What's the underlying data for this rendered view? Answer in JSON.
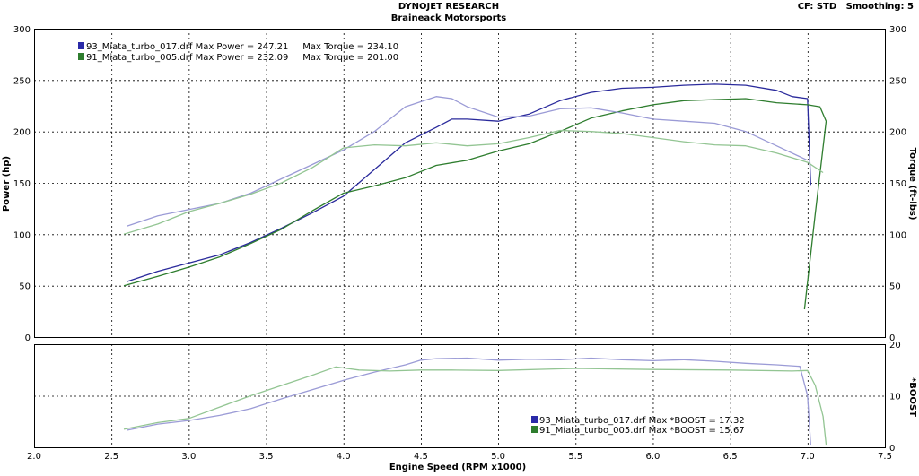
{
  "header": {
    "title": "DYNOJET RESEARCH",
    "subtitle": "Braineack Motorsports",
    "settings": "CF: STD   Smoothing: 5"
  },
  "chart_data": [
    {
      "type": "line",
      "panel": "power-torque",
      "xlabel": "Engine Speed (RPM x1000)",
      "ylabel_left": "Power (hp)",
      "ylabel_right": "Torque (ft-lbs)",
      "xlim": [
        2.0,
        7.5
      ],
      "ylim": [
        0,
        300
      ],
      "x_ticks": [
        "2.0",
        "2.5",
        "3.0",
        "3.5",
        "4.0",
        "4.5",
        "5.0",
        "5.5",
        "6.0",
        "6.5",
        "7.0",
        "7.5"
      ],
      "y_ticks": [
        "0",
        "50",
        "100",
        "150",
        "200",
        "250",
        "300"
      ],
      "grid": true,
      "legend": [
        {
          "file": "93_Miata_turbo_017.drf",
          "text": "93_Miata_turbo_017.drf Max Power = 247.21     Max Torque = 234.10",
          "color": "#2a2aa8"
        },
        {
          "file": "91_Miata_turbo_005.drf",
          "text": "91_Miata_turbo_005.drf Max Power = 232.09     Max Torque = 201.00",
          "color": "#2e7d2e"
        }
      ],
      "series": [
        {
          "name": "93_Miata_turbo_017.drf",
          "measure": "power",
          "color": "#2a2a9c",
          "x": [
            2.6,
            2.8,
            3.0,
            3.2,
            3.4,
            3.6,
            3.8,
            4.0,
            4.2,
            4.4,
            4.6,
            4.7,
            4.8,
            5.0,
            5.2,
            5.4,
            5.6,
            5.8,
            6.0,
            6.2,
            6.4,
            6.6,
            6.8,
            6.9,
            7.0,
            7.02
          ],
          "y": [
            54,
            64,
            72,
            80,
            92,
            106,
            121,
            137,
            163,
            189,
            204,
            212,
            212,
            210,
            217,
            230,
            238,
            242,
            243,
            245,
            246,
            245,
            240,
            234,
            232,
            148
          ]
        },
        {
          "name": "91_Miata_turbo_005.drf",
          "measure": "power",
          "color": "#2e7d2e",
          "x": [
            2.58,
            2.8,
            3.0,
            3.2,
            3.4,
            3.6,
            3.8,
            4.0,
            4.2,
            4.4,
            4.6,
            4.8,
            5.0,
            5.2,
            5.4,
            5.6,
            5.8,
            6.0,
            6.2,
            6.4,
            6.6,
            6.8,
            7.0,
            7.08,
            7.12,
            7.05,
            6.98
          ],
          "y": [
            50,
            59,
            68,
            78,
            91,
            105,
            123,
            140,
            147,
            155,
            167,
            172,
            181,
            188,
            200,
            213,
            220,
            226,
            230,
            231,
            232,
            228,
            226,
            224,
            210,
            120,
            27
          ]
        },
        {
          "name": "93_Miata_turbo_017.drf",
          "measure": "torque",
          "color": "#9b9bd6",
          "x": [
            2.6,
            2.8,
            3.0,
            3.2,
            3.4,
            3.6,
            3.8,
            4.0,
            4.2,
            4.4,
            4.6,
            4.7,
            4.8,
            5.0,
            5.2,
            5.4,
            5.6,
            5.8,
            6.0,
            6.2,
            6.4,
            6.6,
            6.8,
            7.0
          ],
          "y": [
            108,
            118,
            124,
            130,
            140,
            154,
            168,
            182,
            200,
            224,
            234,
            232,
            224,
            214,
            215,
            222,
            223,
            218,
            212,
            210,
            208,
            200,
            186,
            172
          ]
        },
        {
          "name": "91_Miata_turbo_005.drf",
          "measure": "torque",
          "color": "#93c593",
          "x": [
            2.58,
            2.8,
            3.0,
            3.2,
            3.4,
            3.6,
            3.8,
            4.0,
            4.2,
            4.4,
            4.6,
            4.8,
            5.0,
            5.2,
            5.4,
            5.6,
            5.8,
            6.0,
            6.2,
            6.4,
            6.6,
            6.8,
            7.0,
            7.1
          ],
          "y": [
            100,
            110,
            122,
            130,
            139,
            150,
            165,
            184,
            187,
            186,
            189,
            186,
            188,
            194,
            201,
            200,
            198,
            194,
            190,
            187,
            186,
            179,
            170,
            160
          ]
        }
      ]
    },
    {
      "type": "line",
      "panel": "boost",
      "ylabel_right": "*BOOST",
      "xlim": [
        2.0,
        7.5
      ],
      "ylim": [
        0,
        20
      ],
      "y_ticks": [
        "0",
        "10",
        "20"
      ],
      "grid": true,
      "legend": [
        {
          "file": "93_Miata_turbo_017.drf",
          "text": "93_Miata_turbo_017.drf Max *BOOST = 17.32",
          "color": "#2a2aa8"
        },
        {
          "file": "91_Miata_turbo_005.drf",
          "text": "91_Miata_turbo_005.drf Max *BOOST = 15.67",
          "color": "#2e7d2e"
        }
      ],
      "series": [
        {
          "name": "93_Miata_turbo_017.drf",
          "color": "#9b9bd6",
          "x": [
            2.6,
            2.8,
            3.0,
            3.2,
            3.4,
            3.6,
            3.8,
            4.0,
            4.2,
            4.4,
            4.5,
            4.6,
            4.8,
            5.0,
            5.2,
            5.4,
            5.6,
            5.8,
            6.0,
            6.2,
            6.4,
            6.6,
            6.8,
            6.95,
            7.0,
            7.02
          ],
          "y": [
            3.3,
            4.5,
            5.2,
            6.2,
            7.5,
            9.4,
            11.2,
            13.0,
            14.6,
            16.0,
            16.9,
            17.2,
            17.3,
            16.9,
            17.1,
            17.0,
            17.3,
            17.0,
            16.8,
            17.0,
            16.7,
            16.3,
            16.0,
            15.7,
            10.0,
            0.5
          ]
        },
        {
          "name": "91_Miata_turbo_005.drf",
          "color": "#93c593",
          "x": [
            2.58,
            2.8,
            3.0,
            3.2,
            3.4,
            3.6,
            3.8,
            3.95,
            4.1,
            4.3,
            4.5,
            4.7,
            5.0,
            5.5,
            6.0,
            6.5,
            6.9,
            7.0,
            7.05,
            7.1,
            7.12
          ],
          "y": [
            3.5,
            4.8,
            5.6,
            7.8,
            10.0,
            12.0,
            14.0,
            15.6,
            15.0,
            14.8,
            15.0,
            15.0,
            14.9,
            15.3,
            15.1,
            15.0,
            14.8,
            14.9,
            12.0,
            6.0,
            0.5
          ]
        }
      ]
    }
  ]
}
